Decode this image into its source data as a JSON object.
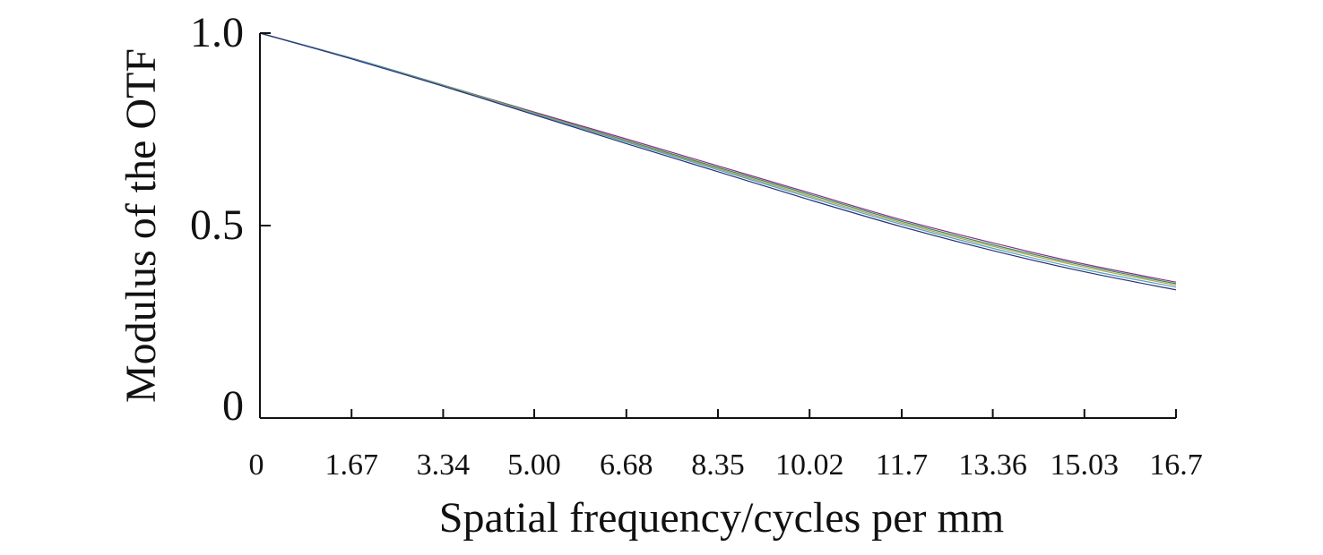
{
  "chart_data": {
    "type": "line",
    "title": "",
    "xlabel": "Spatial frequency/cycles per mm",
    "ylabel": "Modulus of the OTF",
    "xlim": [
      0,
      16.7
    ],
    "ylim": [
      0,
      1.0
    ],
    "x_ticks": [
      0,
      1.67,
      3.34,
      5.0,
      6.68,
      8.35,
      10.02,
      11.7,
      13.36,
      15.03,
      16.7
    ],
    "x_tick_labels": [
      "0",
      "1.67",
      "3.34",
      "5.00",
      "6.68",
      "8.35",
      "10.02",
      "11.7",
      "13.36",
      "15.03",
      "16.7"
    ],
    "y_ticks": [
      0,
      0.5,
      1.0
    ],
    "y_tick_labels": [
      "0",
      "0.5",
      "1.0"
    ],
    "grid": false,
    "legend": "none",
    "x": [
      0,
      1.67,
      3.34,
      5.0,
      6.68,
      8.35,
      10.02,
      11.7,
      13.36,
      15.03,
      16.7
    ],
    "series": [
      {
        "color": "#8a2b8a",
        "values": [
          1.0,
          0.935,
          0.865,
          0.795,
          0.725,
          0.655,
          0.585,
          0.515,
          0.455,
          0.4,
          0.353
        ]
      },
      {
        "color": "#2e8b57",
        "values": [
          1.0,
          0.935,
          0.865,
          0.793,
          0.721,
          0.651,
          0.581,
          0.511,
          0.45,
          0.396,
          0.349
        ]
      },
      {
        "color": "#b8a040",
        "values": [
          1.0,
          0.934,
          0.864,
          0.792,
          0.719,
          0.648,
          0.577,
          0.507,
          0.446,
          0.392,
          0.345
        ]
      },
      {
        "color": "#4aa3c8",
        "values": [
          1.0,
          0.934,
          0.863,
          0.79,
          0.717,
          0.645,
          0.573,
          0.503,
          0.441,
          0.386,
          0.34
        ]
      },
      {
        "color": "#2a2f7a",
        "values": [
          1.0,
          0.933,
          0.862,
          0.788,
          0.713,
          0.64,
          0.567,
          0.497,
          0.435,
          0.38,
          0.333
        ]
      }
    ]
  }
}
